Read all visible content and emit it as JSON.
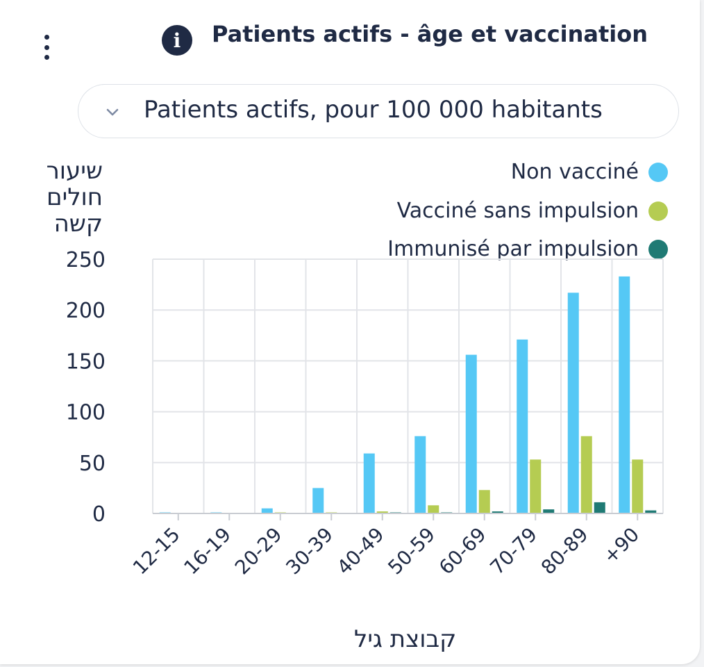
{
  "header": {
    "title": "Patients actifs - âge et vaccination",
    "info_icon": "info-icon",
    "menu_icon": "kebab-menu-icon"
  },
  "dropdown": {
    "selected": "Patients actifs, pour 100 000 habitants",
    "icon": "chevron-down-icon"
  },
  "colors": {
    "non_vaccine": "#55c8f5",
    "vaccine_sans_impulsion": "#b5cc52",
    "immunise_par_impulsion": "#1f7a74",
    "text": "#1f2a44",
    "grid": "#e2e4e8"
  },
  "chart_data": {
    "type": "bar",
    "ylabel_lines": [
      "שיעור",
      "חולים",
      "קשה"
    ],
    "xlabel": "קבוצת גיל",
    "ylim": [
      0,
      250
    ],
    "yticks": [
      0,
      50,
      100,
      150,
      200,
      250
    ],
    "grid": true,
    "legend_position": "top-right",
    "categories": [
      "12-15",
      "16-19",
      "20-29",
      "30-39",
      "40-49",
      "50-59",
      "60-69",
      "70-79",
      "80-89",
      "+90"
    ],
    "series": [
      {
        "name": "Non vacciné",
        "color": "#55c8f5",
        "values": [
          0.5,
          1,
          5,
          25,
          59,
          76,
          156,
          171,
          217,
          233
        ]
      },
      {
        "name": "Vacciné sans impulsion",
        "color": "#b5cc52",
        "values": [
          0,
          0,
          1,
          0.5,
          2,
          8,
          23,
          53,
          76,
          53
        ]
      },
      {
        "name": "Immunisé par impulsion",
        "color": "#1f7a74",
        "values": [
          0,
          0,
          0,
          0,
          1,
          1,
          2,
          4,
          11,
          3
        ]
      }
    ]
  }
}
